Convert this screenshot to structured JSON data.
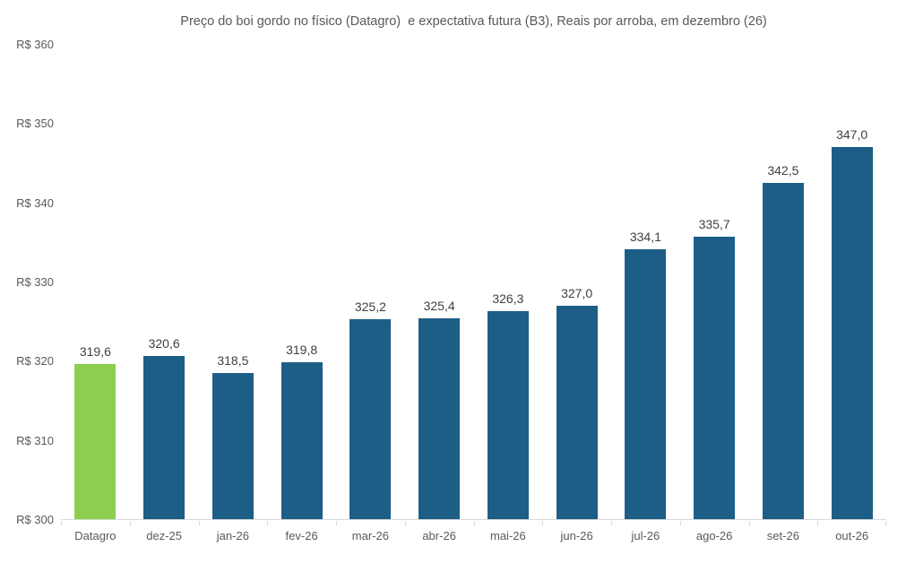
{
  "title": "Preço do boi gordo no físico (Datagro)  e expectativa futura (B3), Reais por arroba, em dezembro (26)",
  "colors": {
    "highlight_bar": "#8DCE50",
    "future_bar": "#1D5E86",
    "axis_line": "#D9D9D9",
    "axis_text": "#595959",
    "data_label_text": "#404040",
    "title_text": "#595959",
    "background": "#FFFFFF"
  },
  "y_axis": {
    "tick_labels": [
      "R$ 360",
      "R$ 350",
      "R$ 340",
      "R$ 330",
      "R$ 320",
      "R$ 310",
      "R$ 300"
    ],
    "min": 300,
    "max": 360,
    "step": 10,
    "prefix": "R$ "
  },
  "chart_data": {
    "type": "bar",
    "title": "Preço do boi gordo no físico (Datagro)  e expectativa futura (B3), Reais por arroba, em dezembro (26)",
    "categories": [
      "Datagro",
      "dez-25",
      "jan-26",
      "fev-26",
      "mar-26",
      "abr-26",
      "mai-26",
      "jun-26",
      "jul-26",
      "ago-26",
      "set-26",
      "out-26"
    ],
    "values": [
      319.6,
      320.6,
      318.5,
      319.8,
      325.2,
      325.4,
      326.3,
      327.0,
      334.1,
      335.7,
      342.5,
      347.0
    ],
    "value_labels": [
      "319,6",
      "320,6",
      "318,5",
      "319,8",
      "325,2",
      "325,4",
      "326,3",
      "327,0",
      "334,1",
      "335,7",
      "342,5",
      "347,0"
    ],
    "highlight_index": 0,
    "xlabel": "",
    "ylabel": "",
    "ylim": [
      300,
      360
    ],
    "grid": false,
    "legend_position": "none"
  }
}
